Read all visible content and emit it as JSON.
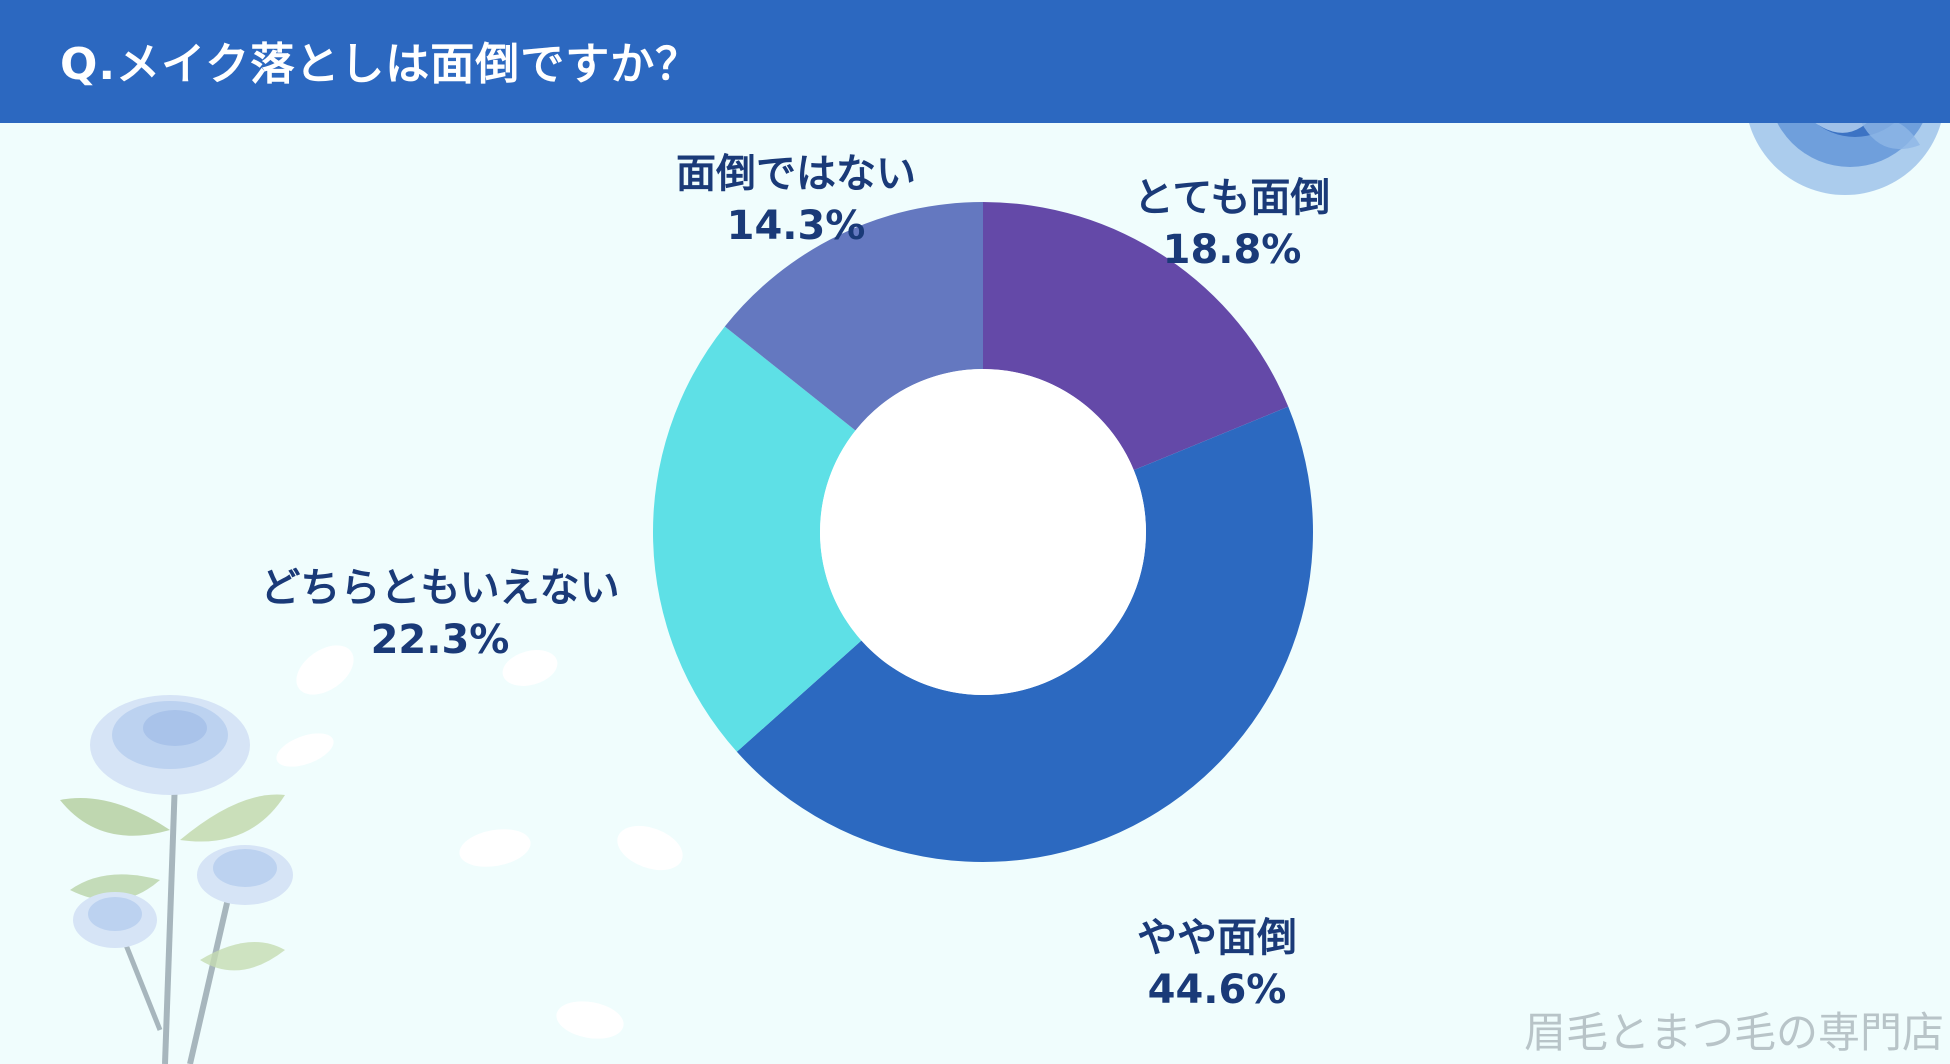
{
  "header": {
    "title": "Q.メイク落としは面倒ですか？"
  },
  "watermark": "眉毛とまつ毛の専門店",
  "colors": {
    "header": "#2c68c0",
    "background": "#f0fdfd",
    "label": "#1a3a78"
  },
  "chart_data": {
    "type": "pie",
    "variant": "donut",
    "start": "12 o'clock",
    "direction": "clockwise",
    "categories": [
      "とても面倒",
      "やや面倒",
      "どちらともいえない",
      "面倒ではない"
    ],
    "values": [
      18.8,
      44.6,
      22.3,
      14.3
    ],
    "value_labels": [
      "18.8%",
      "44.6%",
      "22.3%",
      "14.3%"
    ],
    "colors": [
      "#6449a8",
      "#2c69c0",
      "#5ee0e6",
      "#6478c0"
    ],
    "legend": "none",
    "unit": "%"
  }
}
